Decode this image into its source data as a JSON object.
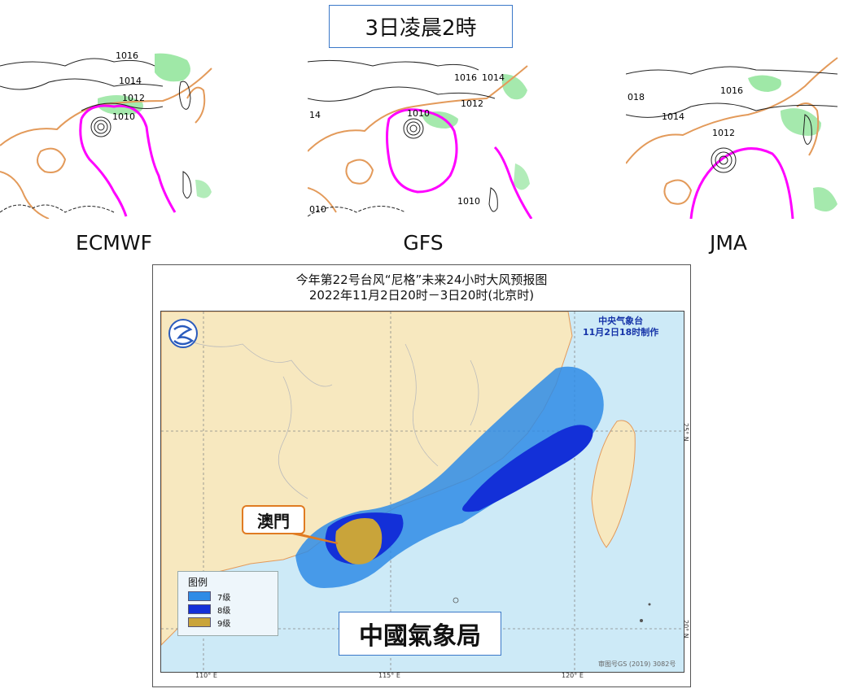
{
  "header": {
    "title": "3日凌晨2時"
  },
  "models": [
    {
      "label": "ECMWF",
      "isobars": [
        "1016",
        "1014",
        "1012",
        "1010"
      ]
    },
    {
      "label": "GFS",
      "isobars": [
        "1016",
        "1014",
        "1012",
        "1010",
        "14",
        "1010",
        "010"
      ]
    },
    {
      "label": "JMA",
      "isobars": [
        "018",
        "1014",
        "1016",
        "1012"
      ]
    }
  ],
  "forecast_map": {
    "title_line1": "今年第22号台风“尼格”未来24小时大风预报图",
    "title_line2": "2022年11月2日20时－3日20时(北京时)",
    "agency_line1": "中央气象台",
    "agency_line2": "11月2日18时制作",
    "legend": {
      "heading": "图例",
      "items": [
        {
          "label": "7级",
          "color": "#2f8ce6"
        },
        {
          "label": "8级",
          "color": "#1330d8"
        },
        {
          "label": "9级",
          "color": "#c9a43a"
        }
      ]
    },
    "lon_ticks": [
      "110° E",
      "115° E",
      "120° E"
    ],
    "lat_ticks": [
      "25° N",
      "20° N"
    ],
    "approval_no": "审图号GS (2019) 3082号",
    "callout": "澳門",
    "stamp": "中國氣象局"
  },
  "colors": {
    "land": "#f7e8bf",
    "sea": "#cdeaf7",
    "coast": "#e39a5a",
    "gale_zone": "#ff00ff",
    "precip": "#7fe08a",
    "accent_border": "#3a78c8"
  }
}
